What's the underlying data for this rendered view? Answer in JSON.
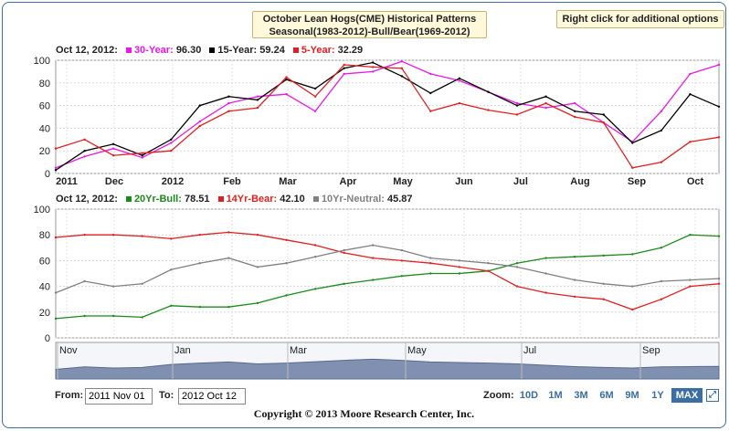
{
  "title": {
    "line1": "October Lean Hogs(CME) Historical Patterns",
    "line2": "Seasonal(1983-2012)-Bull/Bear(1969-2012)"
  },
  "options_label": "Right click for additional options",
  "top_legend": {
    "date": "Oct 12, 2012:",
    "items": [
      {
        "label": "30-Year:",
        "value": "96.30",
        "color": "#e619e6"
      },
      {
        "label": "15-Year:",
        "value": "59.24",
        "color": "#000000"
      },
      {
        "label": "5-Year:",
        "value": "32.29",
        "color": "#e02020"
      }
    ]
  },
  "bottom_legend": {
    "date": "Oct 12, 2012:",
    "items": [
      {
        "label": "20Yr-Bull:",
        "value": "78.51",
        "color": "#1a8a1a"
      },
      {
        "label": "14Yr-Bear:",
        "value": "42.10",
        "color": "#e02020"
      },
      {
        "label": "10Yr-Neutral:",
        "value": "45.87",
        "color": "#808080"
      }
    ]
  },
  "navigator_labels": [
    "Nov",
    "Jan",
    "Mar",
    "May",
    "Jul",
    "Sep"
  ],
  "controls": {
    "from_label": "From:",
    "from_value": "2011 Nov 01",
    "to_label": "To:",
    "to_value": "2012 Oct 12",
    "zoom_label": "Zoom:",
    "zoom_buttons": [
      "10D",
      "1M",
      "3M",
      "6M",
      "9M",
      "1Y",
      "MAX"
    ],
    "active_zoom": "MAX"
  },
  "copyright": "Copyright © 2013 Moore Research Center, Inc.",
  "chart_data": [
    {
      "type": "line",
      "panel": "seasonal",
      "xlabel": "",
      "ylabel": "",
      "ylim": [
        0,
        100
      ],
      "yticks": [
        0,
        20,
        40,
        60,
        80,
        100
      ],
      "x_tick_labels": [
        "2011",
        "Dec",
        "2012",
        "Feb",
        "Mar",
        "Apr",
        "May",
        "Jun",
        "Jul",
        "Aug",
        "Sep",
        "Oct"
      ],
      "x": [
        "Nov 01",
        "Nov 15",
        "Dec 01",
        "Dec 15",
        "Jan 01",
        "Jan 15",
        "Feb 01",
        "Feb 15",
        "Mar 01",
        "Mar 15",
        "Apr 01",
        "Apr 15",
        "May 01",
        "May 15",
        "Jun 01",
        "Jun 15",
        "Jul 01",
        "Jul 15",
        "Aug 01",
        "Aug 15",
        "Sep 01",
        "Sep 15",
        "Oct 01",
        "Oct 12"
      ],
      "series": [
        {
          "name": "30-Year",
          "color": "#e619e6",
          "values": [
            5,
            15,
            22,
            14,
            27,
            46,
            62,
            68,
            70,
            55,
            88,
            90,
            99,
            88,
            82,
            72,
            62,
            58,
            62,
            45,
            28,
            55,
            88,
            96
          ]
        },
        {
          "name": "15-Year",
          "color": "#000000",
          "values": [
            3,
            20,
            26,
            16,
            30,
            60,
            68,
            65,
            83,
            75,
            93,
            98,
            86,
            71,
            84,
            72,
            60,
            68,
            55,
            52,
            27,
            38,
            70,
            59
          ]
        },
        {
          "name": "5-Year",
          "color": "#e02020",
          "values": [
            22,
            30,
            16,
            18,
            20,
            42,
            55,
            58,
            85,
            68,
            96,
            94,
            93,
            55,
            62,
            56,
            52,
            62,
            50,
            45,
            5,
            10,
            28,
            32
          ]
        }
      ]
    },
    {
      "type": "line",
      "panel": "bull-bear",
      "xlabel": "",
      "ylabel": "",
      "ylim": [
        0,
        100
      ],
      "yticks": [
        0,
        20,
        40,
        60,
        80,
        100
      ],
      "x": [
        "Nov 01",
        "Nov 15",
        "Dec 01",
        "Dec 15",
        "Jan 01",
        "Jan 15",
        "Feb 01",
        "Feb 15",
        "Mar 01",
        "Mar 15",
        "Apr 01",
        "Apr 15",
        "May 01",
        "May 15",
        "Jun 01",
        "Jun 15",
        "Jul 01",
        "Jul 15",
        "Aug 01",
        "Aug 15",
        "Sep 01",
        "Sep 15",
        "Oct 01",
        "Oct 12"
      ],
      "series": [
        {
          "name": "20Yr-Bull",
          "color": "#1a8a1a",
          "values": [
            15,
            17,
            17,
            16,
            25,
            24,
            24,
            27,
            33,
            38,
            42,
            45,
            48,
            50,
            50,
            52,
            58,
            62,
            63,
            64,
            65,
            70,
            80,
            79
          ]
        },
        {
          "name": "14Yr-Bear",
          "color": "#e02020",
          "values": [
            78,
            80,
            80,
            79,
            77,
            80,
            82,
            80,
            76,
            72,
            66,
            62,
            60,
            58,
            55,
            52,
            40,
            35,
            32,
            30,
            22,
            30,
            40,
            42
          ]
        },
        {
          "name": "10Yr-Neutral",
          "color": "#808080",
          "values": [
            35,
            44,
            40,
            42,
            53,
            58,
            62,
            55,
            58,
            63,
            68,
            72,
            68,
            62,
            60,
            58,
            55,
            50,
            45,
            42,
            40,
            44,
            45,
            46
          ]
        }
      ]
    }
  ]
}
